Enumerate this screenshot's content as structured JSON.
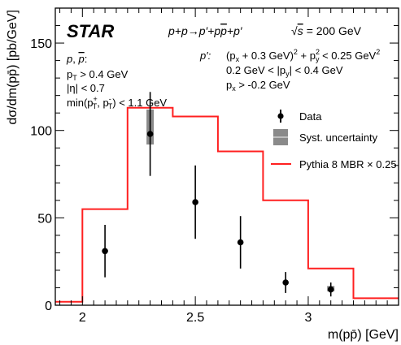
{
  "chart_data": {
    "type": "line",
    "experiment": "STAR",
    "reaction_main": "p+p→p′+p",
    "reaction_pbar": "p",
    "reaction_tail": "+p′",
    "energy": "= 200 GeV",
    "xlabel": "m(pp̄) [GeV]",
    "ylabel": "dσ/dm(pp̄) [pb/GeV]",
    "xlim": [
      1.88,
      3.4
    ],
    "ylim": [
      0,
      170
    ],
    "x_ticks": [
      2,
      2.5,
      3
    ],
    "x_tick_labels": [
      "2",
      "2.5",
      "3"
    ],
    "y_ticks": [
      0,
      50,
      100,
      150
    ],
    "y_tick_labels": [
      "0",
      "50",
      "100",
      "150"
    ],
    "grid": false,
    "legend_position": "right-middle",
    "cuts_left": [
      "p, p̄:",
      "p_T > 0.4 GeV",
      "|η| < 0.7",
      "min(p_T^+, p_T^-) < 1.1 GeV"
    ],
    "cuts_right_title": "p′:",
    "cuts_right": [
      "(p_x + 0.3 GeV)^2 + p_y^2 < 0.25 GeV^2",
      "0.2 GeV < |p_y| < 0.4 GeV",
      "p_x > -0.2 GeV"
    ],
    "series": [
      {
        "name": "Data",
        "x": [
          2.1,
          2.3,
          2.5,
          2.7,
          2.9,
          3.1
        ],
        "y": [
          31,
          98,
          59,
          36,
          13,
          9
        ],
        "yerr": [
          15,
          24,
          21,
          15,
          6,
          4
        ],
        "color": "#000000"
      },
      {
        "name": "Syst. uncertainty",
        "x": [
          2.3,
          3.1
        ],
        "y_low": [
          92,
          8
        ],
        "y_high": [
          112,
          11
        ],
        "color": "#888888"
      },
      {
        "name": "Pythia 8 MBR × 0.25",
        "bin_edges": [
          1.88,
          2.0,
          2.2,
          2.4,
          2.6,
          2.8,
          3.0,
          3.2,
          3.4
        ],
        "values": [
          2,
          55,
          113,
          108,
          88,
          60,
          21,
          4
        ],
        "color": "#ff2020"
      }
    ]
  }
}
